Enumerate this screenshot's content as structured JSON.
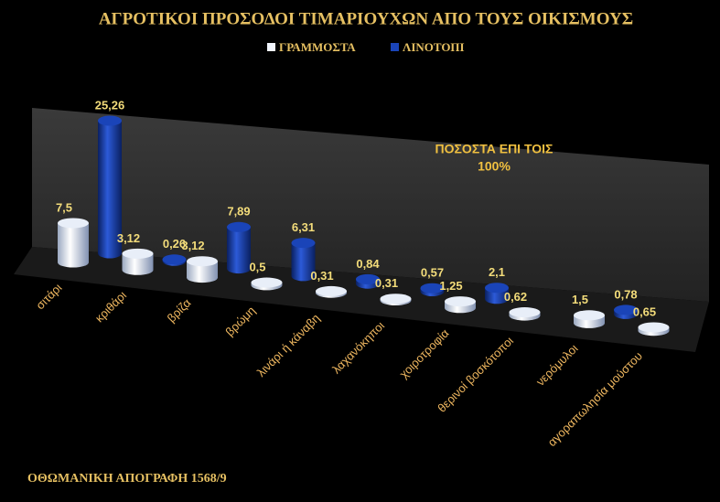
{
  "chart_data": {
    "type": "bar3d",
    "title": "ΑΓΡΟΤΙΚΟΙ ΠΡΟΣΟΔΟΙ ΤΙΜΑΡΙΟΥΧΩΝ ΑΠΟ ΤΟΥΣ ΟΙΚΙΣΜΟΥΣ",
    "annotations": [
      "ΠΟΣΟΣΤΑ ΕΠΙ ΤΟΙΣ",
      "100%"
    ],
    "footer": "ΟΘΩΜΑΝΙΚΗ ΑΠΟΓΡΑΦΗ 1568/9",
    "categories": [
      "σιτάρι",
      "κριθάρι",
      "βρίζα",
      "βρώμη",
      "λινάρι ή κάναβη",
      "λαχανόκηποι",
      "χοιροτροφία",
      "θερινοί βοσκότοποι",
      "νερόμυλοι",
      "αγοραπωλησία μούστου"
    ],
    "series": [
      {
        "name": "ΓΡΑΜΜΟΣΤΑ",
        "color": "#e8eef8",
        "values": [
          7.5,
          3.12,
          3.12,
          0.5,
          0.31,
          0.31,
          1.25,
          0.62,
          1.5,
          0.65
        ],
        "value_labels": [
          "7,5",
          "3,12",
          "3,12",
          "0,5",
          "0,31",
          "0,31",
          "1,25",
          "0,62",
          "1,5",
          "0,65"
        ]
      },
      {
        "name": "ΛΙΝΟΤΟΠΙ",
        "color": "#1a44b8",
        "values": [
          25.26,
          0.26,
          7.89,
          6.31,
          0.84,
          0.57,
          2.1,
          null,
          0.78,
          null
        ],
        "value_labels": [
          "25,26",
          "0,26",
          "7,89",
          "6,31",
          "0,84",
          "0,57",
          "2,1",
          null,
          "0,78",
          null
        ]
      }
    ]
  }
}
